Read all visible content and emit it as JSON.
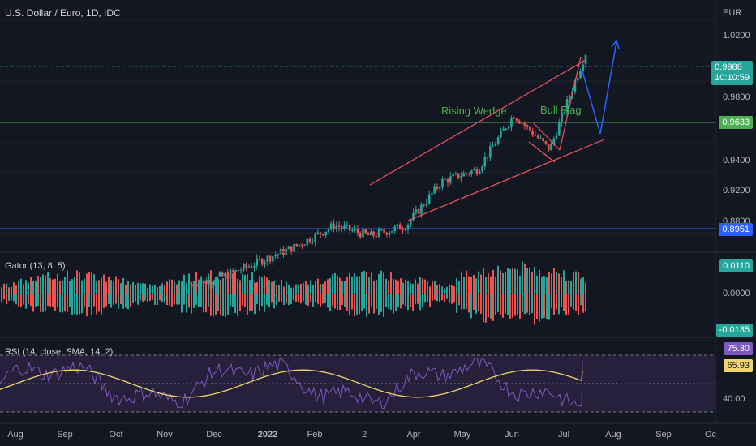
{
  "header": {
    "symbol_title": "U.S. Dollar / Euro, 1D, IDC",
    "currency": "EUR"
  },
  "price_scale": {
    "ticks": [
      "1.0200",
      "0.9800",
      "0.9400",
      "0.9200",
      "0.8800"
    ],
    "badges": {
      "last": "0.9988",
      "countdown": "10:10:59",
      "green_line": "0.9633",
      "blue_line": "0.8951"
    }
  },
  "annotations": {
    "rising_wedge": "Rising Wedge",
    "bull_flag": "Bull Flag"
  },
  "gator": {
    "title": "Gator (13, 8, 5)",
    "badges": {
      "upper": "0.0110",
      "zero": "0.0000",
      "lower": "-0.0135"
    }
  },
  "rsi": {
    "title": "RSI (14, close, SMA, 14, 2)",
    "badges": {
      "rsi": "75.30",
      "ma": "65.93",
      "level": "40.00"
    }
  },
  "time_axis": [
    "Aug",
    "Sep",
    "Oct",
    "Nov",
    "Dec",
    "2022",
    "Feb",
    "2",
    "Apr",
    "May",
    "Jun",
    "Jul",
    "Aug",
    "Sep",
    "Oc"
  ],
  "colors": {
    "background": "#131722",
    "up": "#26a69a",
    "down": "#ef5350",
    "wedge": "#f7525f",
    "green_line": "#4caf50",
    "blue_line": "#2962ff",
    "rsi_line": "#7e57c2",
    "rsi_ma": "#f0d56e",
    "rsi_band": "#2a2240"
  },
  "chart_data": [
    {
      "type": "candlestick",
      "series_name": "U.S. Dollar / Euro, 1D, IDC",
      "x": [
        "2021-08",
        "2021-09",
        "2021-10",
        "2021-11",
        "2021-12",
        "2022-01",
        "2022-02",
        "2022-03",
        "2022-04",
        "2022-05",
        "2022-06",
        "2022-07"
      ],
      "close": [
        0.846,
        0.852,
        0.862,
        0.872,
        0.885,
        0.878,
        0.885,
        0.914,
        0.922,
        0.958,
        0.935,
        0.9988
      ],
      "horizontal_lines": [
        0.9633,
        0.8951
      ],
      "last": 0.9988,
      "ylim": [
        0.87,
        1.025
      ]
    },
    {
      "type": "bar",
      "series_name": "Gator (13, 8, 5)",
      "upper_max": 0.011,
      "lower_min": -0.0135
    },
    {
      "type": "line",
      "series_name": "RSI (14, close, SMA, 14, 2)",
      "rsi": 75.3,
      "ma": 65.93,
      "ylim": [
        30,
        80
      ]
    }
  ]
}
